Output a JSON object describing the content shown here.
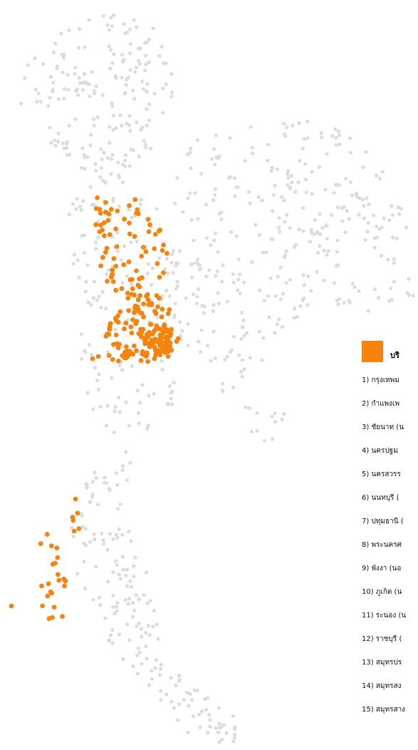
{
  "map": {
    "highlight_color": "#F7830F",
    "background_dot_color": "#DCDCDC"
  },
  "legend": {
    "title": "บริ",
    "items": [
      "1) กรุงเทพม",
      "2) กำแพงเพ",
      "3) ชัยนาท (น",
      "4) นครปฐม",
      "5) นครสวรร",
      "6) นนทบุรี (",
      "7) ปทุมธานี (",
      "8) พระนครศ",
      "9) พังงา (นอ",
      "10) ภูเก็ต (น",
      "11) ระนอง (น",
      "12) ราชบุรี (",
      "13) สมุทรปร",
      "14) สมุทรสง",
      "15) สมุทรสาง"
    ]
  }
}
